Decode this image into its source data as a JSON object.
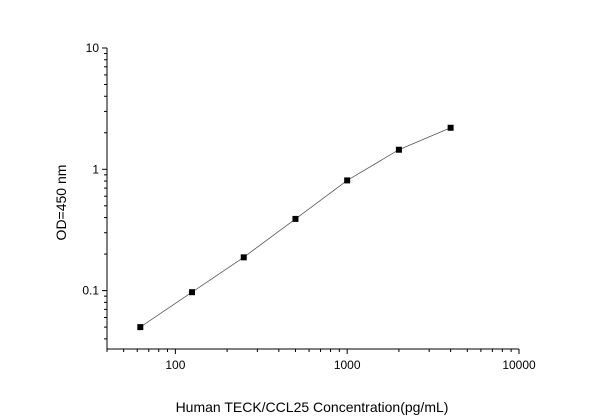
{
  "chart_data": {
    "type": "scatter",
    "xlabel": "Human TECK/CCL25 Concentration(pg/mL)",
    "ylabel": "OD=450 nm",
    "xscale": "log",
    "yscale": "log",
    "xlim": [
      40,
      10000
    ],
    "ylim": [
      0.033,
      10
    ],
    "x_ticks": [
      {
        "value": 100,
        "label": "100"
      },
      {
        "value": 1000,
        "label": "1000"
      },
      {
        "value": 10000,
        "label": "10000"
      }
    ],
    "y_ticks": [
      {
        "value": 0.1,
        "label": "0.1"
      },
      {
        "value": 1,
        "label": "1"
      },
      {
        "value": 10,
        "label": "10"
      }
    ],
    "grid": false,
    "marker": "square",
    "series": [
      {
        "x": [
          62.5,
          125,
          250,
          500,
          1000,
          2000,
          4000
        ],
        "y": [
          0.05,
          0.097,
          0.188,
          0.39,
          0.81,
          1.45,
          2.2
        ],
        "fit_line": true
      }
    ]
  }
}
